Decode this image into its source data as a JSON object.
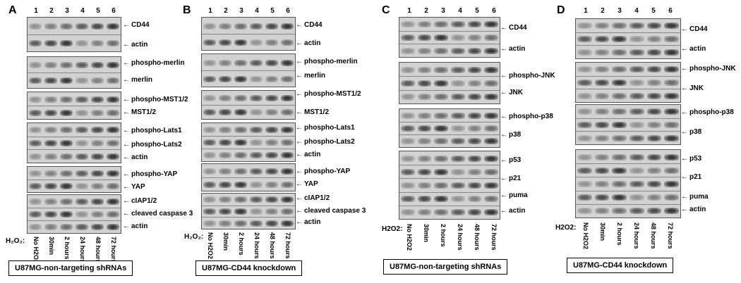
{
  "lanes": [
    "1",
    "2",
    "3",
    "4",
    "5",
    "6"
  ],
  "treatment_label": "H₂O₂:",
  "treatment_label_alt": "H2O2:",
  "timepoints": [
    "No H2O2",
    "30min",
    "2 hours",
    "24 hours",
    "48 hours",
    "72 hours"
  ],
  "panels": {
    "A": {
      "letter": "A",
      "caption": "U87MG-non-targeting shRNAs",
      "rows": [
        "CD44",
        "actin",
        "phospho-merlin",
        "merlin",
        "phospho-MST1/2",
        "MST1/2",
        "phospho-Lats1",
        "phospho-Lats2",
        "actin",
        "phospho-YAP",
        "YAP",
        "cIAP1/2",
        "cleaved caspase 3",
        "actin"
      ]
    },
    "B": {
      "letter": "B",
      "caption": "U87MG-CD44 knockdown",
      "rows": [
        "CD44",
        "actin",
        "phospho-merlin",
        "merlin",
        "phospho-MST1/2",
        "MST1/2",
        "phospho-Lats1",
        "phospho-Lats2",
        "actin",
        "phospho-YAP",
        "YAP",
        "cIAP1/2",
        "cleaved caspase 3",
        "actin"
      ]
    },
    "C": {
      "letter": "C",
      "caption": "U87MG-non-targeting shRNAs",
      "rows": [
        "CD44",
        "actin",
        "phospho-JNK",
        "JNK",
        "phospho-p38",
        "p38",
        "p53",
        "p21",
        "puma",
        "actin"
      ]
    },
    "D": {
      "letter": "D",
      "caption": "U87MG-CD44 knockdown",
      "rows": [
        "CD44",
        "actin",
        "phospho-JNK",
        "JNK",
        "phospho-p38",
        "p38",
        "p53",
        "p21",
        "puma",
        "actin"
      ]
    }
  }
}
